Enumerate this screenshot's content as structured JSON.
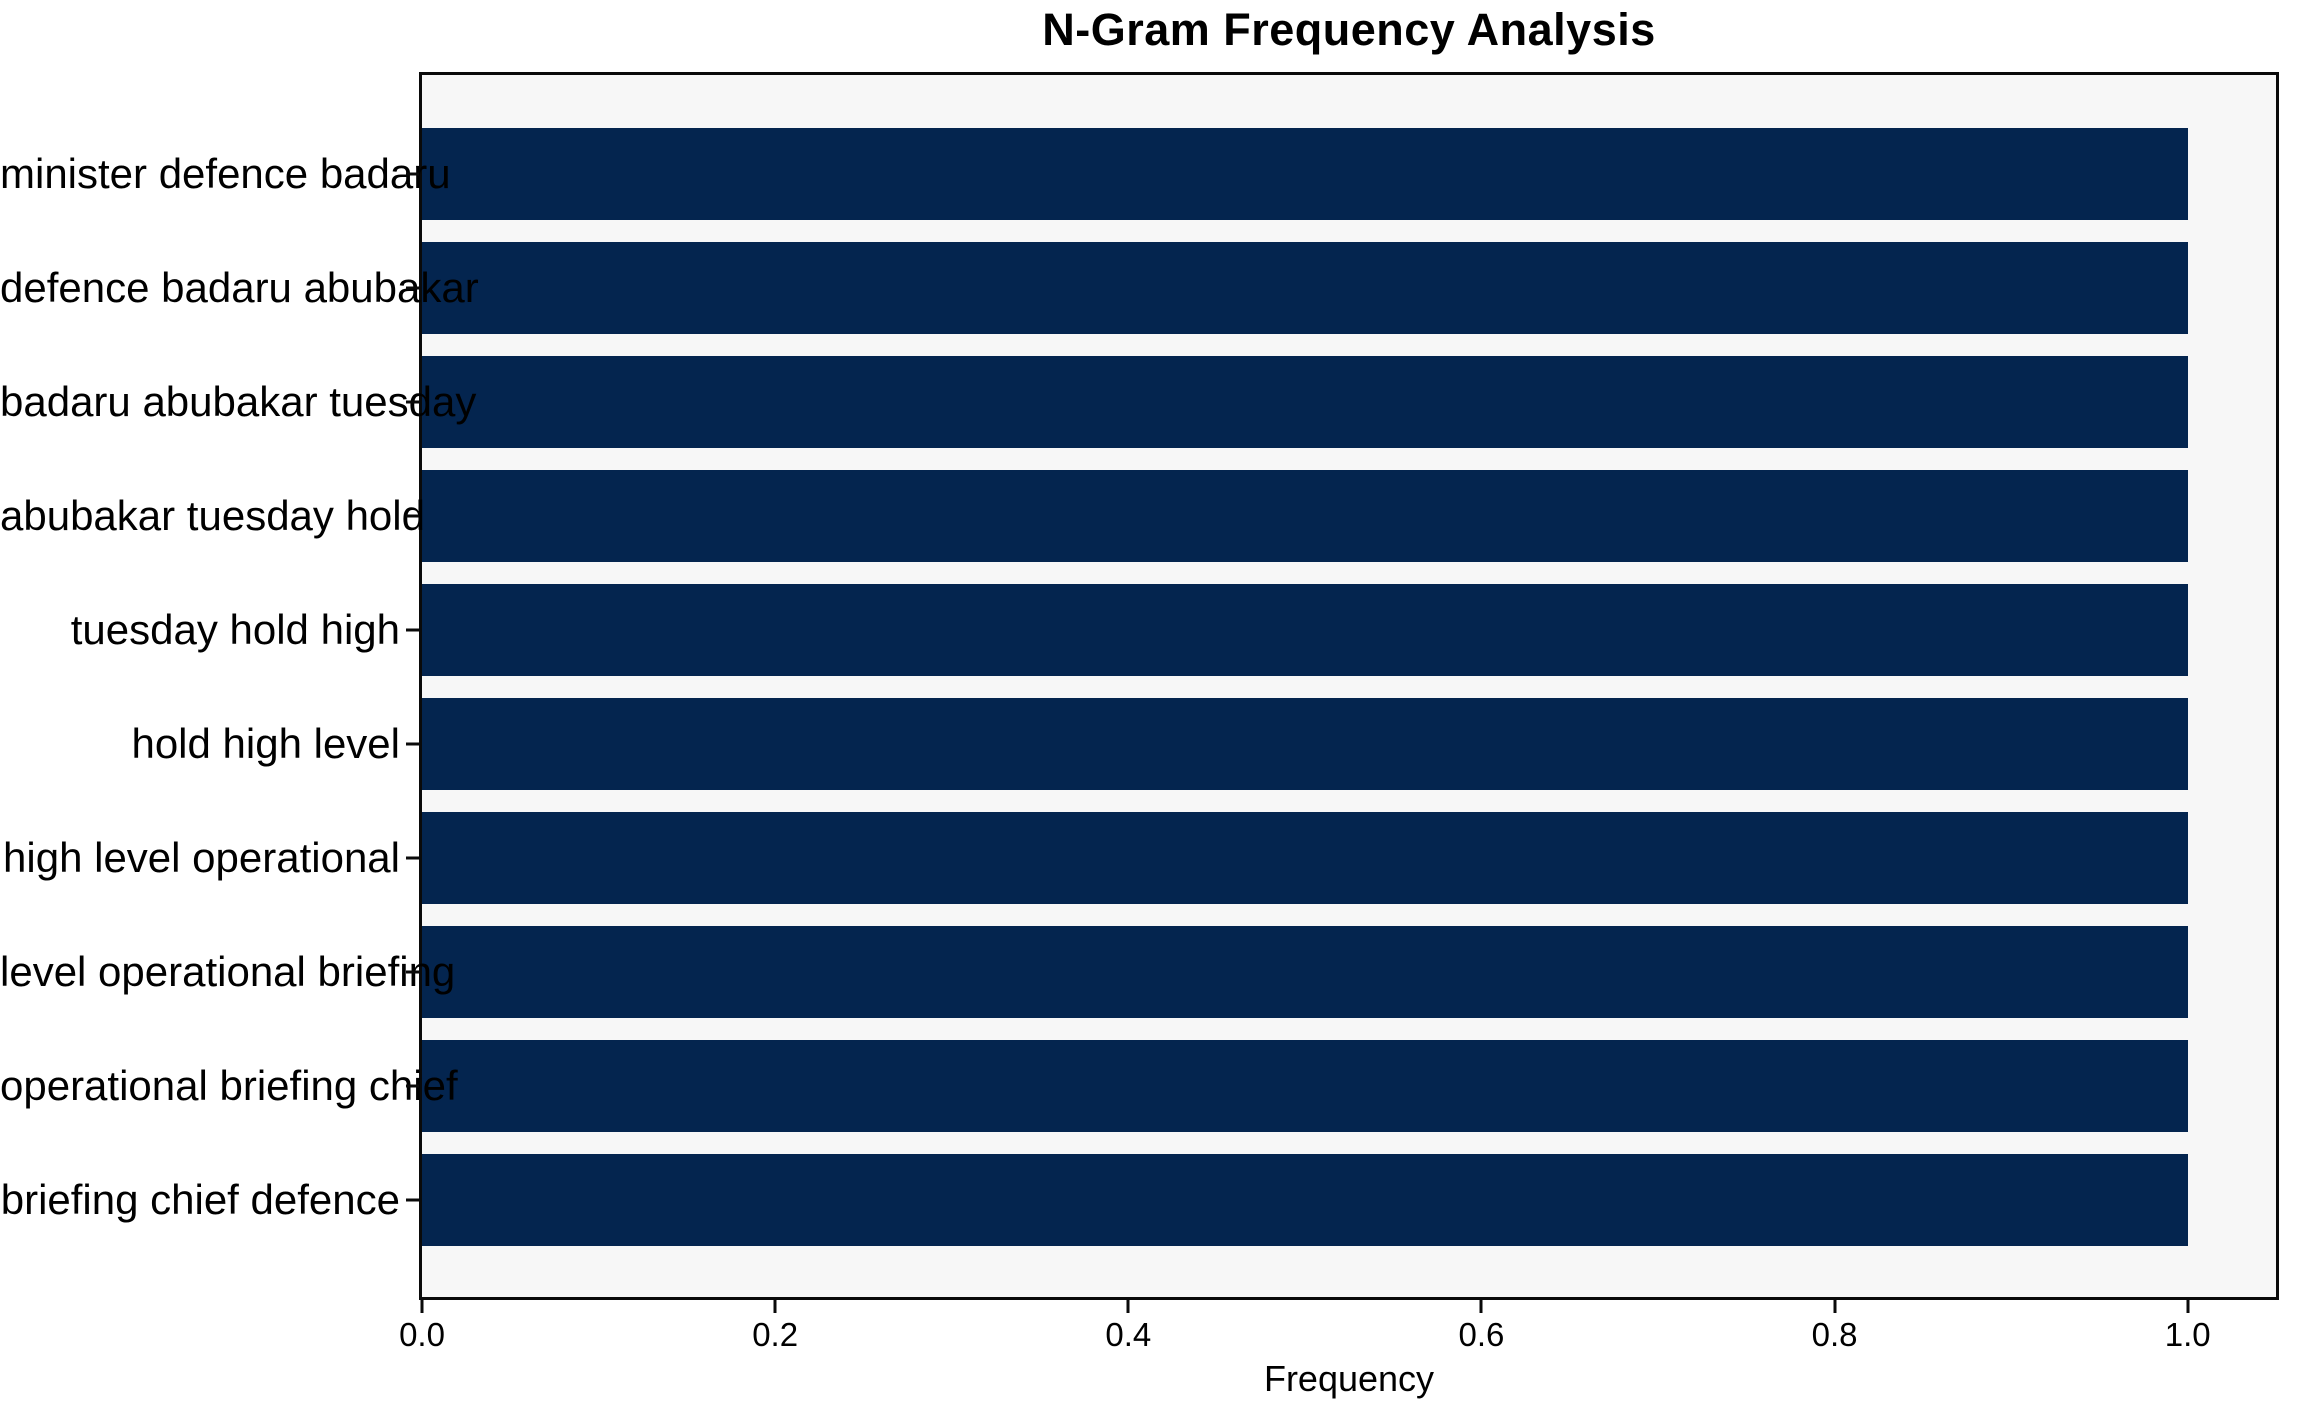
{
  "chart_data": {
    "type": "bar",
    "orientation": "horizontal",
    "title": "N-Gram Frequency Analysis",
    "xlabel": "Frequency",
    "ylabel": "",
    "categories": [
      "minister defence badaru",
      "defence badaru abubakar",
      "badaru abubakar tuesday",
      "abubakar tuesday hold",
      "tuesday hold high",
      "hold high level",
      "high level operational",
      "level operational briefing",
      "operational briefing chief",
      "briefing chief defence"
    ],
    "values": [
      1.0,
      1.0,
      1.0,
      1.0,
      1.0,
      1.0,
      1.0,
      1.0,
      1.0,
      1.0
    ],
    "xticks": [
      "0.0",
      "0.2",
      "0.4",
      "0.6",
      "0.8",
      "1.0"
    ],
    "xtick_values": [
      0.0,
      0.2,
      0.4,
      0.6,
      0.8,
      1.0
    ],
    "xlim": [
      0,
      1.05
    ],
    "grid": false,
    "legend": null,
    "colors": {
      "bar": "#04254f",
      "plot_background": "#f7f7f7",
      "figure_background": "#ffffff",
      "spine": "#0a0a0a",
      "text": "#000000"
    }
  }
}
